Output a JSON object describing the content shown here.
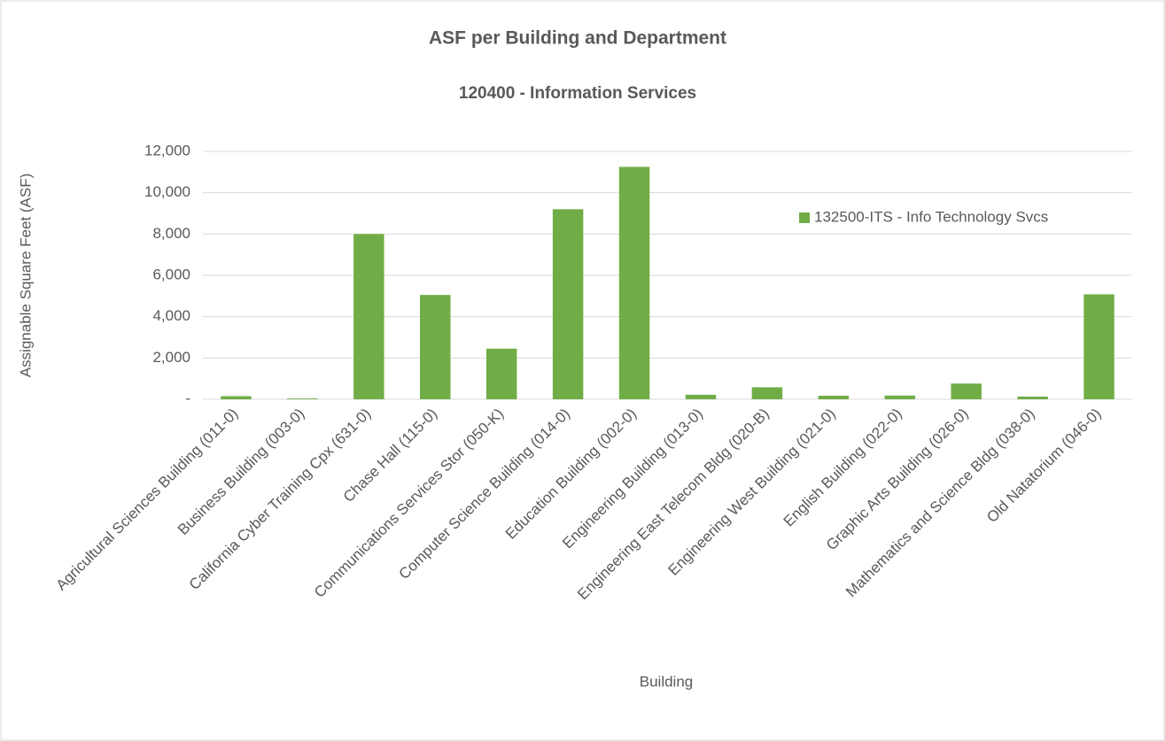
{
  "chart_data": {
    "type": "bar",
    "title": "ASF per Building and Department",
    "subtitle": "120400 - Information Services",
    "y_label": "Assignable Square Feet (ASF)",
    "x_label": "Building",
    "categories": [
      "Agricultural Sciences Building (011-0)",
      "Business Building (003-0)",
      "California Cyber Training Cpx (631-0)",
      "Chase Hall (115-0)",
      "Communications Services Stor (050-K)",
      "Computer Science Building (014-0)",
      "Education Building (002-0)",
      "Engineering Building (013-0)",
      "Engineering East Telecom Bldg (020-B)",
      "Engineering West Building (021-0)",
      "English Building (022-0)",
      "Graphic Arts Building (026-0)",
      "Mathematics and Science Bldg (038-0)",
      "Old Natatorium (046-0)"
    ],
    "series": [
      {
        "name": "132500-ITS - Info Technology Svcs",
        "color": "#70ad47",
        "values": [
          150,
          40,
          8000,
          5050,
          2450,
          9200,
          11250,
          220,
          580,
          170,
          180,
          760,
          130,
          5080
        ]
      }
    ],
    "ylim": [
      0,
      12000
    ],
    "yticks": [
      {
        "value": 0,
        "label": "-"
      },
      {
        "value": 2000,
        "label": "2,000"
      },
      {
        "value": 4000,
        "label": "4,000"
      },
      {
        "value": 6000,
        "label": "6,000"
      },
      {
        "value": 8000,
        "label": "8,000"
      },
      {
        "value": 10000,
        "label": "10,000"
      },
      {
        "value": 12000,
        "label": "12,000"
      }
    ],
    "grid": true,
    "legend": "right"
  }
}
